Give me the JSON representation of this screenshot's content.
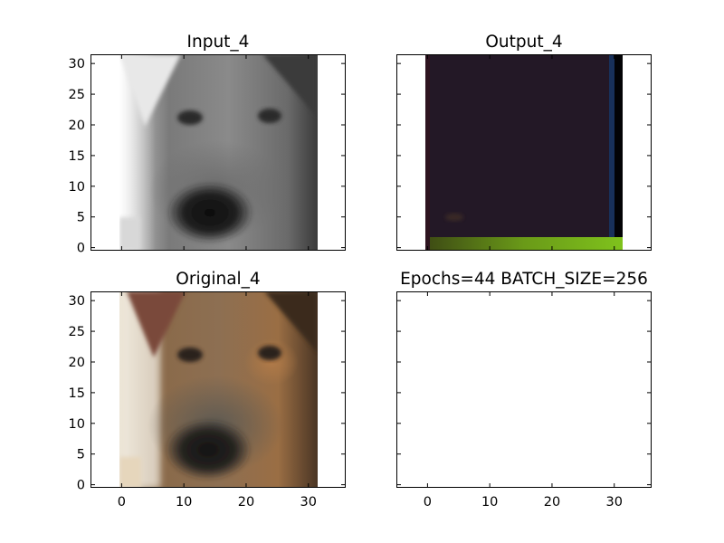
{
  "chart_data": [
    {
      "type": "image",
      "title": "Input_4",
      "xlim": [
        -5,
        36
      ],
      "ylim": [
        31.5,
        -0.5
      ],
      "image_extent": [
        -0.5,
        31.5,
        31.5,
        -0.5
      ],
      "content": "grayscale-dog-face",
      "yticks": [
        0,
        5,
        10,
        15,
        20,
        25,
        30
      ],
      "xticks": [
        0,
        10,
        20,
        30
      ],
      "show_xtick_labels": false,
      "show_ytick_labels": true
    },
    {
      "type": "image",
      "title": "Output_4",
      "xlim": [
        -5,
        36
      ],
      "ylim": [
        31.5,
        -0.5
      ],
      "image_extent": [
        -0.5,
        31.5,
        31.5,
        -0.5
      ],
      "content": "dark-reconstruction",
      "yticks": [
        0,
        5,
        10,
        15,
        20,
        25,
        30
      ],
      "xticks": [
        0,
        10,
        20,
        30
      ],
      "show_xtick_labels": false,
      "show_ytick_labels": false
    },
    {
      "type": "image",
      "title": "Original_4",
      "xlim": [
        -5,
        36
      ],
      "ylim": [
        31.5,
        -0.5
      ],
      "image_extent": [
        -0.5,
        31.5,
        31.5,
        -0.5
      ],
      "content": "color-dog-face",
      "yticks": [
        0,
        5,
        10,
        15,
        20,
        25,
        30
      ],
      "xticks": [
        0,
        10,
        20,
        30
      ],
      "show_xtick_labels": true,
      "show_ytick_labels": true
    },
    {
      "type": "image",
      "title": "Epochs=44 BATCH_SIZE=256",
      "xlim": [
        -5,
        36
      ],
      "ylim": [
        31.5,
        -0.5
      ],
      "image_extent": null,
      "content": "empty",
      "yticks": [
        0,
        5,
        10,
        15,
        20,
        25,
        30
      ],
      "xticks": [
        0,
        10,
        20,
        30
      ],
      "show_xtick_labels": true,
      "show_ytick_labels": false
    }
  ]
}
